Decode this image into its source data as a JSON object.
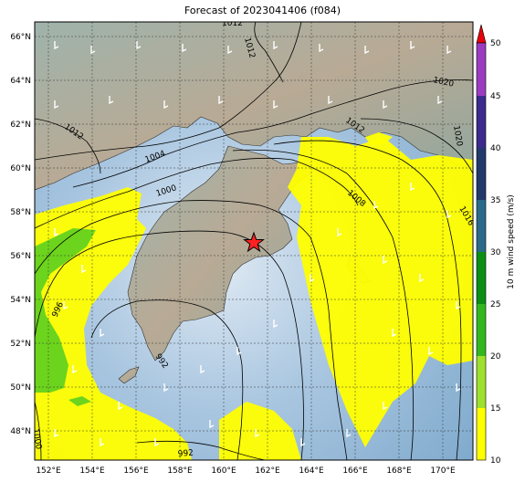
{
  "title": "Forecast of 2023041406 (f084)",
  "x_ticks": [
    "152°E",
    "154°E",
    "156°E",
    "158°E",
    "160°E",
    "162°E",
    "164°E",
    "166°E",
    "168°E",
    "170°E"
  ],
  "y_ticks": [
    "66°N",
    "64°N",
    "62°N",
    "60°N",
    "58°N",
    "56°N",
    "54°N",
    "52°N",
    "50°N",
    "48°N"
  ],
  "isobar_labels": [
    "1012",
    "1012",
    "1020",
    "1012",
    "1004",
    "1012",
    "1000",
    "1008",
    "1016",
    "1020",
    "996",
    "992",
    "992",
    "1000"
  ],
  "colorbar": {
    "label": "10 m wind speed (m/s)",
    "ticks": [
      "10",
      "15",
      "20",
      "25",
      "30",
      "35",
      "40",
      "45",
      "50"
    ],
    "colors": [
      "#ffff00",
      "#9ee02e",
      "#32b81e",
      "#0a8f14",
      "#2a6b8a",
      "#223a6b",
      "#3c2a8c",
      "#6a2ea8",
      "#9b3cc0"
    ],
    "extend_color": "#e8000b"
  },
  "marker": {
    "symbol": "star",
    "color": "#ff2222"
  }
}
